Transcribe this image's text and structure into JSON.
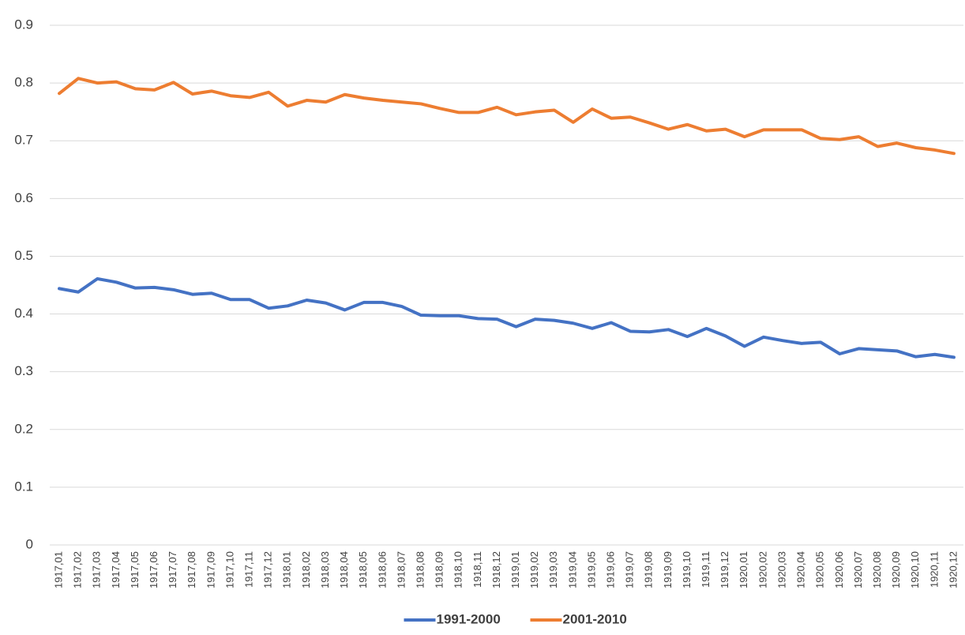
{
  "chart_data": {
    "type": "line",
    "categories": [
      "1917,01",
      "1917,02",
      "1917,03",
      "1917,04",
      "1917,05",
      "1917,06",
      "1917,07",
      "1917,08",
      "1917,09",
      "1917,10",
      "1917,11",
      "1917,12",
      "1918,01",
      "1918,02",
      "1918,03",
      "1918,04",
      "1918,05",
      "1918,06",
      "1918,07",
      "1918,08",
      "1918,09",
      "1918,10",
      "1918,11",
      "1918,12",
      "1919,01",
      "1919,02",
      "1919,03",
      "1919,04",
      "1919,05",
      "1919,06",
      "1919,07",
      "1919,08",
      "1919,09",
      "1919,10",
      "1919,11",
      "1919,12",
      "1920,01",
      "1920,02",
      "1920,03",
      "1920,04",
      "1920,05",
      "1920,06",
      "1920,07",
      "1920,08",
      "1920,09",
      "1920,10",
      "1920,11",
      "1920,12"
    ],
    "series": [
      {
        "name": "1991-2000",
        "color": "#4472c4",
        "values": [
          0.444,
          0.438,
          0.461,
          0.455,
          0.445,
          0.446,
          0.442,
          0.434,
          0.436,
          0.425,
          0.425,
          0.41,
          0.414,
          0.424,
          0.419,
          0.407,
          0.42,
          0.42,
          0.413,
          0.398,
          0.397,
          0.397,
          0.392,
          0.391,
          0.378,
          0.391,
          0.389,
          0.384,
          0.375,
          0.385,
          0.37,
          0.369,
          0.373,
          0.361,
          0.375,
          0.362,
          0.344,
          0.36,
          0.354,
          0.349,
          0.351,
          0.331,
          0.34,
          0.338,
          0.336,
          0.326,
          0.33,
          0.325
        ]
      },
      {
        "name": "2001-2010",
        "color": "#ed7d31",
        "values": [
          0.782,
          0.808,
          0.8,
          0.802,
          0.79,
          0.788,
          0.801,
          0.781,
          0.786,
          0.778,
          0.775,
          0.784,
          0.76,
          0.77,
          0.767,
          0.78,
          0.774,
          0.77,
          0.767,
          0.764,
          0.756,
          0.749,
          0.749,
          0.758,
          0.745,
          0.75,
          0.753,
          0.732,
          0.755,
          0.739,
          0.741,
          0.731,
          0.72,
          0.728,
          0.717,
          0.72,
          0.707,
          0.719,
          0.719,
          0.719,
          0.704,
          0.702,
          0.707,
          0.69,
          0.696,
          0.688,
          0.684,
          0.678
        ]
      }
    ],
    "ylim": [
      0,
      0.9
    ],
    "yticks": [
      0,
      0.1,
      0.2,
      0.3,
      0.4,
      0.5,
      0.6,
      0.7,
      0.8,
      0.9
    ],
    "grid": true,
    "legend": "bottom"
  }
}
